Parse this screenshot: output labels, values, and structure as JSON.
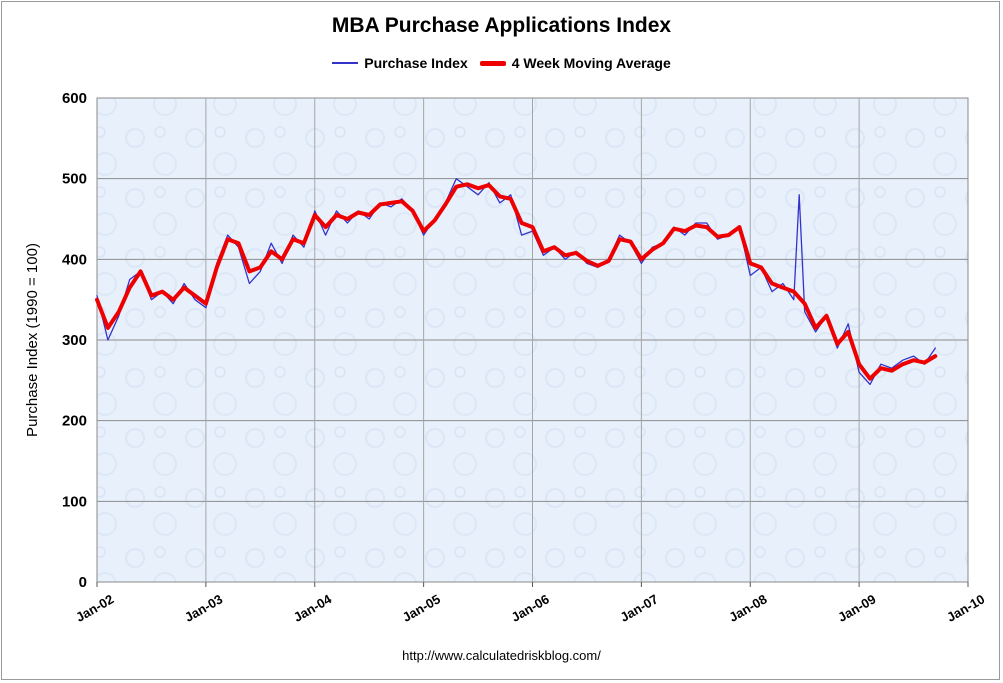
{
  "chart_data": {
    "type": "line",
    "title": "MBA Purchase Applications Index",
    "xlabel": "",
    "ylabel": "Purchase Index (1990 = 100)",
    "ylim": [
      0,
      600
    ],
    "yticks": [
      "0",
      "100",
      "200",
      "300",
      "400",
      "500",
      "600"
    ],
    "xlim": [
      2002,
      2010
    ],
    "xticks": [
      "Jan-02",
      "Jan-03",
      "Jan-04",
      "Jan-05",
      "Jan-06",
      "Jan-07",
      "Jan-08",
      "Jan-09",
      "Jan-10"
    ],
    "grid": true,
    "legend_position": "top",
    "series": [
      {
        "name": "Purchase Index",
        "color": "#3333cc",
        "x": [
          2002.0,
          2002.1,
          2002.2,
          2002.3,
          2002.4,
          2002.5,
          2002.6,
          2002.7,
          2002.8,
          2002.9,
          2003.0,
          2003.1,
          2003.2,
          2003.3,
          2003.4,
          2003.5,
          2003.6,
          2003.7,
          2003.8,
          2003.9,
          2004.0,
          2004.1,
          2004.2,
          2004.3,
          2004.4,
          2004.5,
          2004.6,
          2004.7,
          2004.8,
          2004.9,
          2005.0,
          2005.1,
          2005.2,
          2005.3,
          2005.4,
          2005.5,
          2005.6,
          2005.7,
          2005.8,
          2005.9,
          2006.0,
          2006.1,
          2006.2,
          2006.3,
          2006.4,
          2006.5,
          2006.6,
          2006.7,
          2006.8,
          2006.9,
          2007.0,
          2007.1,
          2007.2,
          2007.3,
          2007.4,
          2007.5,
          2007.6,
          2007.7,
          2007.8,
          2007.9,
          2008.0,
          2008.1,
          2008.2,
          2008.3,
          2008.4,
          2008.45,
          2008.5,
          2008.6,
          2008.7,
          2008.8,
          2008.9,
          2009.0,
          2009.1,
          2009.2,
          2009.3,
          2009.4,
          2009.5,
          2009.6,
          2009.7
        ],
        "values": [
          355,
          300,
          330,
          375,
          385,
          350,
          360,
          345,
          370,
          350,
          340,
          395,
          430,
          415,
          370,
          385,
          420,
          395,
          430,
          415,
          460,
          430,
          460,
          445,
          460,
          450,
          470,
          465,
          475,
          460,
          430,
          450,
          470,
          500,
          490,
          480,
          495,
          470,
          480,
          430,
          435,
          405,
          415,
          400,
          410,
          395,
          390,
          400,
          430,
          420,
          395,
          415,
          420,
          440,
          430,
          445,
          445,
          425,
          430,
          440,
          380,
          390,
          360,
          370,
          350,
          480,
          335,
          310,
          330,
          290,
          320,
          260,
          245,
          270,
          265,
          275,
          280,
          270,
          290
        ]
      },
      {
        "name": "4 Week Moving Average",
        "color": "#ee0000",
        "x": [
          2002.0,
          2002.1,
          2002.2,
          2002.3,
          2002.4,
          2002.5,
          2002.6,
          2002.7,
          2002.8,
          2002.9,
          2003.0,
          2003.1,
          2003.2,
          2003.3,
          2003.4,
          2003.5,
          2003.6,
          2003.7,
          2003.8,
          2003.9,
          2004.0,
          2004.1,
          2004.2,
          2004.3,
          2004.4,
          2004.5,
          2004.6,
          2004.7,
          2004.8,
          2004.9,
          2005.0,
          2005.1,
          2005.2,
          2005.3,
          2005.4,
          2005.5,
          2005.6,
          2005.7,
          2005.8,
          2005.9,
          2006.0,
          2006.1,
          2006.2,
          2006.3,
          2006.4,
          2006.5,
          2006.6,
          2006.7,
          2006.8,
          2006.9,
          2007.0,
          2007.1,
          2007.2,
          2007.3,
          2007.4,
          2007.5,
          2007.6,
          2007.7,
          2007.8,
          2007.9,
          2008.0,
          2008.1,
          2008.2,
          2008.3,
          2008.4,
          2008.5,
          2008.6,
          2008.7,
          2008.8,
          2008.9,
          2009.0,
          2009.1,
          2009.2,
          2009.3,
          2009.4,
          2009.5,
          2009.6,
          2009.7
        ],
        "values": [
          350,
          315,
          335,
          365,
          385,
          355,
          360,
          350,
          365,
          355,
          345,
          390,
          425,
          420,
          385,
          390,
          410,
          400,
          425,
          420,
          455,
          440,
          455,
          450,
          458,
          455,
          468,
          470,
          472,
          460,
          435,
          448,
          468,
          490,
          493,
          488,
          492,
          478,
          475,
          445,
          440,
          410,
          415,
          405,
          408,
          398,
          392,
          398,
          425,
          422,
          400,
          412,
          420,
          438,
          435,
          442,
          440,
          428,
          430,
          440,
          395,
          390,
          370,
          365,
          360,
          345,
          315,
          330,
          295,
          310,
          270,
          252,
          265,
          262,
          270,
          275,
          272,
          280
        ]
      }
    ]
  },
  "source_url": "http://www.calculatedriskblog.com/"
}
